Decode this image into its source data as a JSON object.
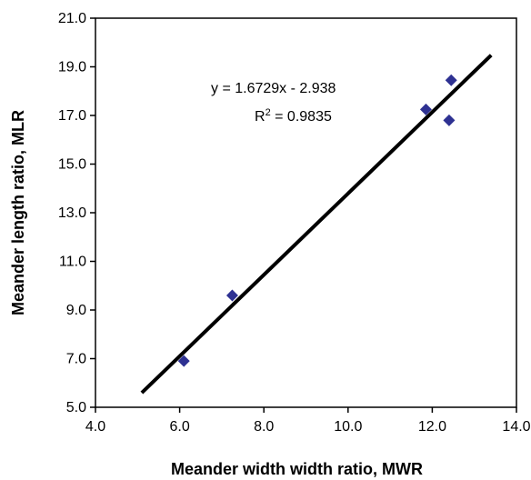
{
  "chart_data": {
    "type": "scatter",
    "xlabel": "Meander width width ratio, MWR",
    "ylabel": "Meander length ratio, MLR",
    "xlim": [
      4.0,
      14.0
    ],
    "ylim": [
      5.0,
      21.0
    ],
    "xticks": [
      "4.0",
      "6.0",
      "8.0",
      "10.0",
      "12.0",
      "14.0"
    ],
    "yticks": [
      "5.0",
      "7.0",
      "9.0",
      "11.0",
      "13.0",
      "15.0",
      "17.0",
      "19.0",
      "21.0"
    ],
    "grid": false,
    "marker_color": "#2e3192",
    "series": [
      {
        "points": [
          {
            "x": 6.1,
            "y": 6.9
          },
          {
            "x": 7.25,
            "y": 9.6
          },
          {
            "x": 11.85,
            "y": 17.25
          },
          {
            "x": 12.4,
            "y": 16.8
          },
          {
            "x": 12.45,
            "y": 18.45
          }
        ]
      }
    ],
    "trendline": {
      "slope": 1.6729,
      "intercept": -2.938,
      "x_range": [
        5.1,
        13.4
      ],
      "equation": "y = 1.6729x - 2.938",
      "r2_label": "R",
      "r2_sup": "2",
      "r2_value": " = 0.9835"
    }
  }
}
